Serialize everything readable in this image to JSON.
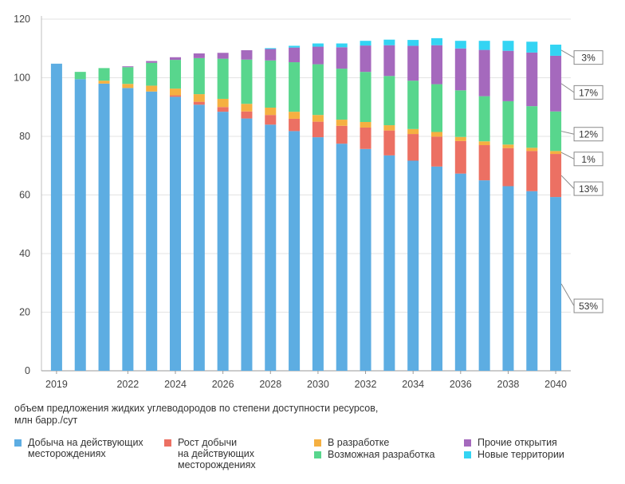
{
  "chart_data": {
    "type": "bar",
    "stacked": true,
    "title": "",
    "xlabel": "",
    "ylabel": "",
    "ylim": [
      0,
      120
    ],
    "y_ticks": [
      0,
      20,
      40,
      60,
      80,
      100,
      120
    ],
    "grid": true,
    "legend_position": "bottom",
    "x_tick_labels": [
      "2019",
      "2022",
      "2024",
      "2026",
      "2028",
      "2030",
      "2032",
      "2034",
      "2036",
      "2038",
      "2040"
    ],
    "categories": [
      "2019",
      "2020",
      "2021",
      "2022",
      "2023",
      "2024",
      "2025",
      "2026",
      "2027",
      "2028",
      "2029",
      "2030",
      "2031",
      "2032",
      "2033",
      "2034",
      "2035",
      "2036",
      "2037",
      "2038",
      "2039",
      "2040"
    ],
    "series": [
      {
        "name": "Добыча на действующих\nместорождениях",
        "color": "#5dade2",
        "values": [
          104.8,
          99.5,
          98.0,
          96.5,
          95.3,
          93.5,
          90.8,
          88.4,
          86.1,
          84.0,
          81.8,
          79.7,
          77.5,
          75.7,
          73.5,
          71.7,
          69.7,
          67.3,
          65.0,
          63.0,
          61.3,
          59.3
        ]
      },
      {
        "name": "Рост добычи\nна действующих\nместорождениях",
        "color": "#ec7063",
        "values": [
          0,
          0,
          0,
          0,
          0,
          0.5,
          1.0,
          1.6,
          2.4,
          3.3,
          4.2,
          5.3,
          6.1,
          7.3,
          8.5,
          9.1,
          10.2,
          11.1,
          12.0,
          13.0,
          13.7,
          14.7
        ]
      },
      {
        "name": "В разработке",
        "color": "#f5b041",
        "values": [
          0,
          0,
          1.0,
          1.4,
          2.0,
          2.3,
          2.6,
          2.8,
          2.6,
          2.5,
          2.4,
          2.3,
          2.1,
          1.9,
          1.8,
          1.7,
          1.6,
          1.4,
          1.3,
          1.2,
          1.1,
          1.0
        ]
      },
      {
        "name": "Возможная разработка",
        "color": "#58d68d",
        "values": [
          0,
          2.5,
          4.3,
          5.7,
          7.8,
          9.8,
          12.3,
          13.7,
          15.1,
          16.1,
          16.9,
          17.3,
          17.4,
          17.1,
          16.8,
          16.5,
          16.3,
          15.9,
          15.4,
          14.8,
          14.2,
          13.5
        ]
      },
      {
        "name": "Прочие открытия",
        "color": "#a569bd",
        "values": [
          0,
          0,
          0,
          0.3,
          0.6,
          0.9,
          1.6,
          2.0,
          3.2,
          3.9,
          5.0,
          6.0,
          7.3,
          9.0,
          10.5,
          11.9,
          13.3,
          14.3,
          15.8,
          17.2,
          18.3,
          19.0
        ]
      },
      {
        "name": "Новые территории",
        "color": "#33d4f3",
        "values": [
          0,
          0,
          0,
          0,
          0,
          0,
          0,
          0,
          0,
          0.3,
          0.6,
          1.1,
          1.3,
          1.6,
          1.9,
          2.0,
          2.4,
          2.6,
          3.1,
          3.4,
          3.7,
          3.8
        ]
      }
    ],
    "annotations": [
      {
        "label": "3%",
        "series": "Новые территории"
      },
      {
        "label": "17%",
        "series": "Прочие открытия"
      },
      {
        "label": "12%",
        "series": "Возможная разработка"
      },
      {
        "label": "1%",
        "series": "В разработке"
      },
      {
        "label": "13%",
        "series": "Рост добычи на действующих месторождениях"
      },
      {
        "label": "53%",
        "series": "Добыча на действующих месторождениях"
      }
    ]
  },
  "caption": {
    "line1": "объем предложения жидких углеводородов по степени доступности ресурсов,",
    "line2": "млн барр./сут"
  }
}
